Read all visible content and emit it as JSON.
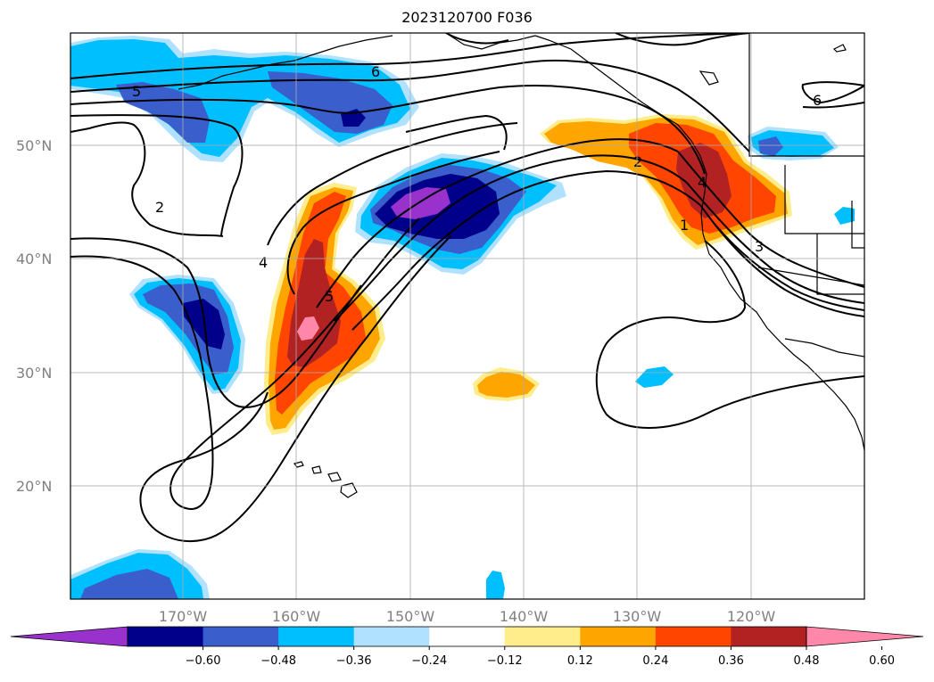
{
  "title": "2023120700 F036",
  "lat_labels": [
    "50°N",
    "40°N",
    "30°N",
    "20°N"
  ],
  "lon_labels": [
    "170°W",
    "160°W",
    "150°W",
    "140°W",
    "130°W",
    "120°W"
  ],
  "colorbar": {
    "ticks": [
      "−0.60",
      "−0.48",
      "−0.36",
      "−0.24",
      "−0.12",
      "0.12",
      "0.24",
      "0.36",
      "0.48",
      "0.60"
    ],
    "colors": [
      "#9932CC",
      "#00008B",
      "#3A5FCD",
      "#00BFFF",
      "#B0E2FF",
      "#FFFFFF",
      "#FFEC8B",
      "#FFA500",
      "#FF4500",
      "#B22222",
      "#FF88AA"
    ]
  },
  "contour_labels": [
    "5",
    "6",
    "2",
    "4",
    "5",
    "2",
    "4",
    "1",
    "3",
    "6"
  ]
}
